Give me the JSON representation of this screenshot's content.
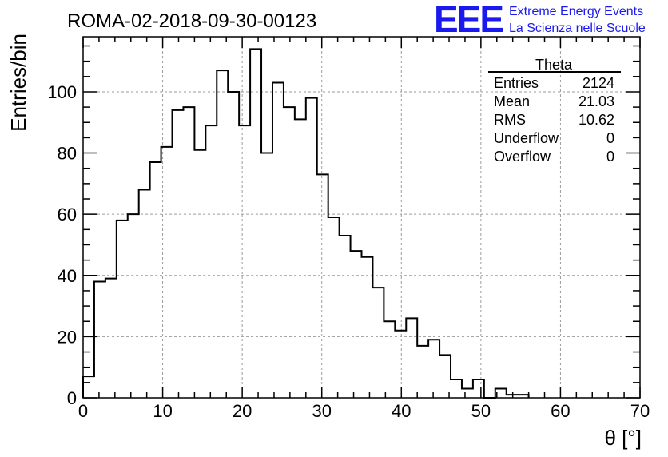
{
  "chart_data": {
    "type": "bar",
    "title": "ROMA-02-2018-09-30-00123",
    "xlabel": "θ [°]",
    "ylabel": "Entries/bin",
    "xlim": [
      0,
      70
    ],
    "ylim": [
      0,
      118
    ],
    "grid": true,
    "bin_width": 1.4,
    "x_ticks": [
      0,
      10,
      20,
      30,
      40,
      50,
      60,
      70
    ],
    "y_ticks": [
      0,
      20,
      40,
      60,
      80,
      100
    ],
    "values": [
      7,
      38,
      39,
      58,
      60,
      68,
      77,
      82,
      94,
      95,
      81,
      89,
      107,
      100,
      89,
      114,
      80,
      103,
      95,
      91,
      98,
      73,
      59,
      53,
      48,
      46,
      36,
      25,
      22,
      26,
      17,
      19,
      14,
      6,
      3,
      6,
      0,
      3,
      1,
      1
    ],
    "stats_box": {
      "title": "Theta",
      "rows": [
        {
          "label": "Entries",
          "value": "2124"
        },
        {
          "label": "Mean",
          "value": "21.03"
        },
        {
          "label": "RMS",
          "value": "10.62"
        },
        {
          "label": "Underflow",
          "value": "0"
        },
        {
          "label": "Overflow",
          "value": "0"
        }
      ]
    },
    "logo": {
      "text": "EEE",
      "line1": "Extreme Energy Events",
      "line2": "La Scienza nelle Scuole",
      "color": "#1a1aee"
    },
    "line_color": "#000000",
    "grid_color": "#9a9a9a"
  }
}
